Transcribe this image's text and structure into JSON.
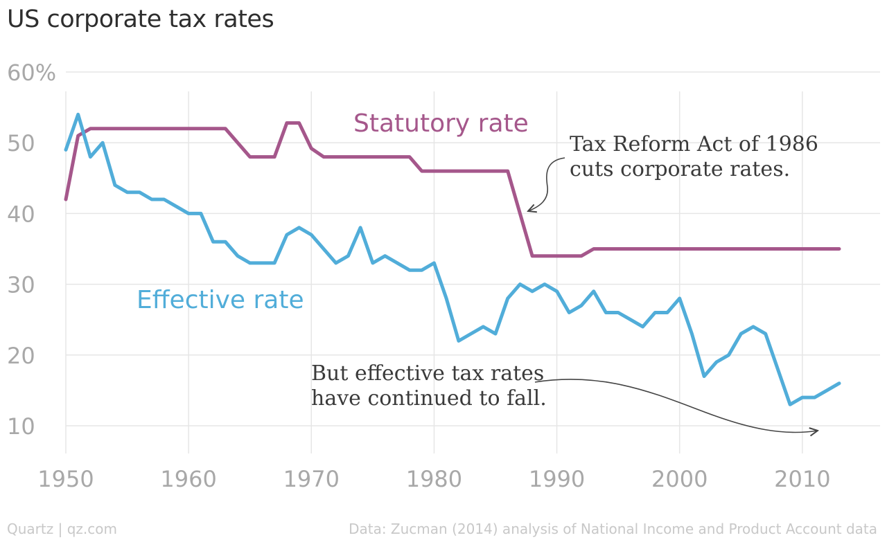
{
  "title": "US corporate tax rates",
  "footer": {
    "source_brand": "Quartz | qz.com",
    "data_note": "Data: Zucman (2014) analysis of National Income and Product Account data"
  },
  "chart_data": {
    "type": "line",
    "title": "US corporate tax rates",
    "xlabel": "",
    "ylabel": "",
    "xlim": [
      1950,
      2013
    ],
    "ylim": [
      10,
      60
    ],
    "grid": true,
    "x_ticks": [
      "1950",
      "1960",
      "1970",
      "1980",
      "1990",
      "2000",
      "2010"
    ],
    "y_ticks": [
      "60%",
      "50",
      "40",
      "30",
      "20",
      "10"
    ],
    "series": [
      {
        "name": "Statutory rate",
        "color": "#a5578b",
        "points": [
          [
            1950,
            42
          ],
          [
            1951,
            51
          ],
          [
            1952,
            52
          ],
          [
            1963,
            52
          ],
          [
            1965,
            48
          ],
          [
            1967,
            48
          ],
          [
            1968,
            52.8
          ],
          [
            1969,
            52.8
          ],
          [
            1970,
            49.2
          ],
          [
            1971,
            48
          ],
          [
            1978,
            48
          ],
          [
            1979,
            46
          ],
          [
            1986,
            46
          ],
          [
            1988,
            34
          ],
          [
            1992,
            34
          ],
          [
            1993,
            35
          ],
          [
            2013,
            35
          ]
        ]
      },
      {
        "name": "Effective rate",
        "color": "#51add9",
        "points": [
          [
            1950,
            49
          ],
          [
            1951,
            54
          ],
          [
            1952,
            48
          ],
          [
            1953,
            50
          ],
          [
            1954,
            44
          ],
          [
            1955,
            43
          ],
          [
            1956,
            43
          ],
          [
            1957,
            42
          ],
          [
            1958,
            42
          ],
          [
            1959,
            41
          ],
          [
            1960,
            40
          ],
          [
            1961,
            40
          ],
          [
            1962,
            36
          ],
          [
            1963,
            36
          ],
          [
            1964,
            34
          ],
          [
            1965,
            33
          ],
          [
            1966,
            33
          ],
          [
            1967,
            33
          ],
          [
            1968,
            37
          ],
          [
            1969,
            38
          ],
          [
            1970,
            37
          ],
          [
            1971,
            35
          ],
          [
            1972,
            33
          ],
          [
            1973,
            34
          ],
          [
            1974,
            38
          ],
          [
            1975,
            33
          ],
          [
            1976,
            34
          ],
          [
            1977,
            33
          ],
          [
            1978,
            32
          ],
          [
            1979,
            32
          ],
          [
            1980,
            33
          ],
          [
            1981,
            28
          ],
          [
            1982,
            22
          ],
          [
            1983,
            23
          ],
          [
            1984,
            24
          ],
          [
            1985,
            23
          ],
          [
            1986,
            28
          ],
          [
            1987,
            30
          ],
          [
            1988,
            29
          ],
          [
            1989,
            30
          ],
          [
            1990,
            29
          ],
          [
            1991,
            26
          ],
          [
            1992,
            27
          ],
          [
            1993,
            29
          ],
          [
            1994,
            26
          ],
          [
            1995,
            26
          ],
          [
            1996,
            25
          ],
          [
            1997,
            24
          ],
          [
            1998,
            26
          ],
          [
            1999,
            26
          ],
          [
            2000,
            28
          ],
          [
            2001,
            23
          ],
          [
            2002,
            17
          ],
          [
            2003,
            19
          ],
          [
            2004,
            20
          ],
          [
            2005,
            23
          ],
          [
            2006,
            24
          ],
          [
            2007,
            23
          ],
          [
            2008,
            18
          ],
          [
            2009,
            13
          ],
          [
            2010,
            14
          ],
          [
            2011,
            14
          ],
          [
            2012,
            15
          ],
          [
            2013,
            16
          ]
        ]
      }
    ],
    "annotations": [
      {
        "lines": [
          "Tax Reform Act of 1986",
          "cuts corporate rates."
        ]
      },
      {
        "lines": [
          "But effective tax rates",
          "have continued to fall."
        ]
      }
    ]
  }
}
